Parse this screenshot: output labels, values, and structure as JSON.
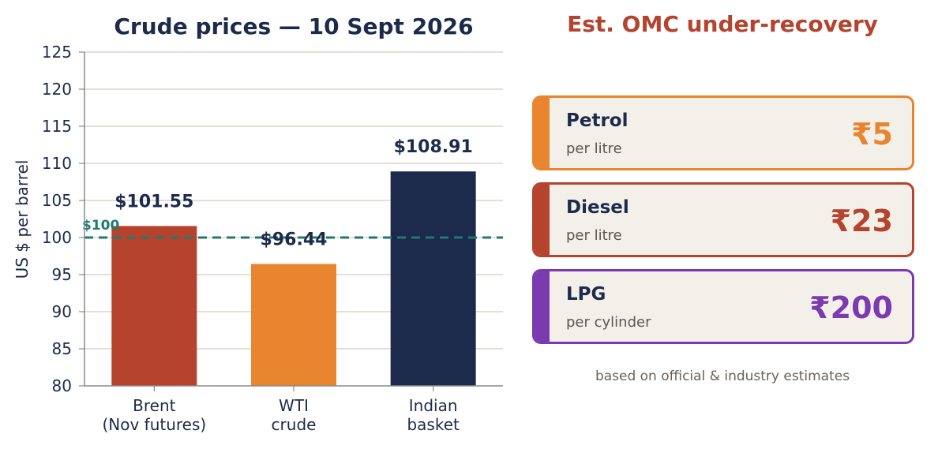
{
  "chart_data": {
    "type": "bar",
    "title": "Crude prices — 10 Sept 2026",
    "ylabel": "US $ per barrel",
    "xlabel": "",
    "ylim": [
      80,
      125
    ],
    "yticks": [
      80,
      85,
      90,
      95,
      100,
      105,
      110,
      115,
      120,
      125
    ],
    "categories": [
      [
        "Brent",
        "(Nov futures)"
      ],
      [
        "WTI",
        "crude"
      ],
      [
        "Indian",
        "basket"
      ]
    ],
    "values": [
      101.55,
      96.44,
      108.91
    ],
    "value_labels": [
      "$101.55",
      "$96.44",
      "$108.91"
    ],
    "colors": [
      "#b5432e",
      "#e8852e",
      "#1c2a4b"
    ],
    "reference_line": {
      "value": 100,
      "label": "$100",
      "color": "#1f7a70",
      "style": "dashed"
    },
    "grid": "horizontal"
  },
  "panel": {
    "title": "Est. OMC under-recovery",
    "title_color": "#b5432e",
    "cards": [
      {
        "fuel": "Petrol",
        "unit": "per litre",
        "value": "₹5",
        "color": "#e8852e"
      },
      {
        "fuel": "Diesel",
        "unit": "per litre",
        "value": "₹23",
        "color": "#b5432e"
      },
      {
        "fuel": "LPG",
        "unit": "per cylinder",
        "value": "₹200",
        "color": "#7b3ab0"
      }
    ],
    "footnote": "based on official & industry estimates"
  },
  "colors": {
    "text_dark": "#1c2a4b",
    "grid": "#d9d6c8",
    "axis": "#8a8a8a"
  }
}
